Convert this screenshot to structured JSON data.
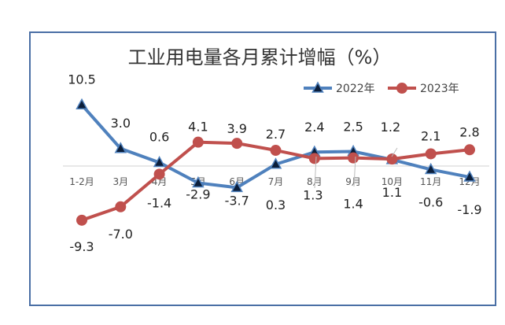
{
  "chart_data": {
    "type": "line",
    "title": "工业用电量各月累计增幅（%）",
    "categories": [
      "1-2月",
      "3月",
      "4月",
      "5月",
      "6月",
      "7月",
      "8月",
      "9月",
      "10月",
      "11月",
      "12月"
    ],
    "series": [
      {
        "name": "2022年",
        "color": "#4f81bd",
        "marker": "triangle",
        "values": [
          10.5,
          3.0,
          0.6,
          -2.9,
          -3.7,
          0.3,
          2.4,
          2.5,
          1.1,
          -0.6,
          -1.9
        ]
      },
      {
        "name": "2023年",
        "color": "#c0504d",
        "marker": "circle",
        "values": [
          -9.3,
          -7.0,
          -1.4,
          4.1,
          3.9,
          2.7,
          1.3,
          1.4,
          1.2,
          2.1,
          2.8
        ]
      }
    ],
    "ylim": [
      -11,
      12
    ],
    "xlabel": "",
    "ylabel": "",
    "grid": false,
    "legend_position": "top-right"
  }
}
